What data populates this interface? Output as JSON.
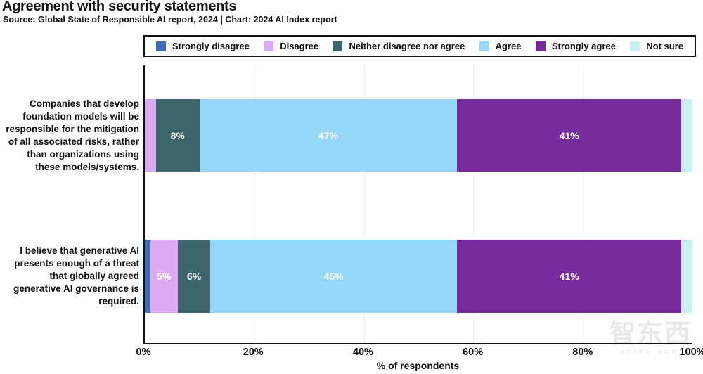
{
  "header": {
    "title": "Agreement with security statements",
    "subtitle": "Source: Global State of Responsible AI report, 2024 | Chart: 2024 AI Index report"
  },
  "watermark": {
    "text": "智东西",
    "subtext": "zhidx.com"
  },
  "chart_data": {
    "type": "bar",
    "orientation": "horizontal",
    "stacked": true,
    "title": "Agreement with security statements",
    "xlabel": "% of respondents",
    "xlim": [
      0,
      100
    ],
    "grid": true,
    "legend_position": "top",
    "xticks": [
      {
        "label": "0%",
        "value": 0
      },
      {
        "label": "20%",
        "value": 20
      },
      {
        "label": "40%",
        "value": 40
      },
      {
        "label": "60%",
        "value": 60
      },
      {
        "label": "80%",
        "value": 80
      },
      {
        "label": "100%",
        "value": 100
      }
    ],
    "gridline_values": [
      20,
      40,
      60,
      80
    ],
    "categories": [
      "Companies that develop foundation models will be responsible for the mitigation of all associated risks, rather than organizations using these models/systems.",
      "I believe that generative AI presents enough of a threat that globally agreed generative AI governance is required."
    ],
    "series": [
      {
        "name": "Strongly disagree",
        "color": "#3E6DB3",
        "values": [
          0,
          1
        ],
        "labels": [
          "",
          ""
        ]
      },
      {
        "name": "Disagree",
        "color": "#DCA9F2",
        "values": [
          2,
          5
        ],
        "labels": [
          "",
          "5%"
        ]
      },
      {
        "name": "Neither disagree nor agree",
        "color": "#3C666C",
        "values": [
          8,
          6
        ],
        "labels": [
          "8%",
          "6%"
        ]
      },
      {
        "name": "Agree",
        "color": "#96D7F9",
        "values": [
          47,
          45
        ],
        "labels": [
          "47%",
          "45%"
        ]
      },
      {
        "name": "Strongly agree",
        "color": "#752B99",
        "values": [
          41,
          41
        ],
        "labels": [
          "41%",
          "41%"
        ]
      },
      {
        "name": "Not sure",
        "color": "#C8F0F2",
        "values": [
          2,
          2
        ],
        "labels": [
          "",
          ""
        ]
      }
    ]
  }
}
